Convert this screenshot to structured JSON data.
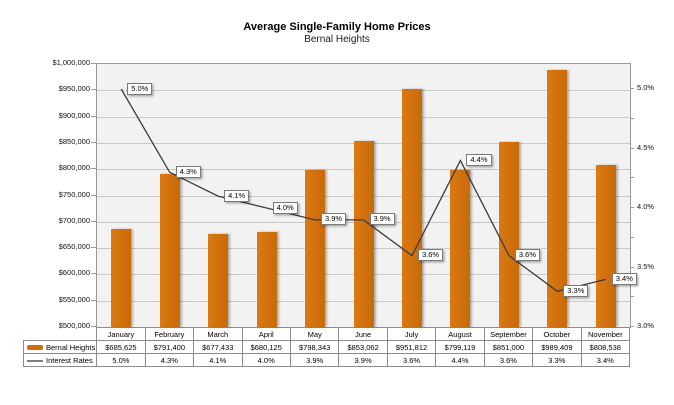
{
  "chart_data": {
    "type": "bar",
    "subtype": "combo-bar-line",
    "title": "Average Single-Family Home Prices",
    "subtitle": "Bernal Heights",
    "categories": [
      "January",
      "February",
      "March",
      "April",
      "May",
      "June",
      "July",
      "August",
      "September",
      "October",
      "November"
    ],
    "series": [
      {
        "name": "Bernal Heights",
        "type": "bar",
        "axis": "left",
        "color": "#d06e0e",
        "values": [
          685625,
          791400,
          677433,
          680125,
          798343,
          853062,
          951812,
          799119,
          851000,
          989409,
          808538
        ],
        "labels": [
          "$685,625",
          "$791,400",
          "$677,433",
          "$680,125",
          "$798,343",
          "$853,062",
          "$951,812",
          "$799,119",
          "$851,000",
          "$989,409",
          "$808,538"
        ]
      },
      {
        "name": "Interest Rates",
        "type": "line",
        "axis": "right",
        "color": "#3c3c3c",
        "values": [
          5.0,
          4.3,
          4.1,
          4.0,
          3.9,
          3.9,
          3.6,
          4.4,
          3.6,
          3.3,
          3.4
        ],
        "labels": [
          "5.0%",
          "4.3%",
          "4.1%",
          "4.0%",
          "3.9%",
          "3.9%",
          "3.6%",
          "4.4%",
          "3.6%",
          "3.3%",
          "3.4%"
        ]
      }
    ],
    "left_axis": {
      "min": 500000,
      "max": 1000000,
      "tick_labels": [
        "$1,000,000",
        "$950,000",
        "$900,000",
        "$850,000",
        "$800,000",
        "$750,000",
        "$700,000",
        "$650,000",
        "$600,000",
        "$550,000",
        "$500,000"
      ]
    },
    "right_axis": {
      "min": 3.0,
      "max": 5.21,
      "tick_labels": [
        "5.0%",
        "4.5%",
        "4.0%",
        "3.5%",
        "3.0%"
      ],
      "tick_values": [
        5.0,
        4.5,
        4.0,
        3.5,
        3.0
      ],
      "minor_tick_step": 0.25,
      "minor_tick_min": 3.0,
      "minor_tick_max": 5.0
    },
    "grid": true,
    "legend_position": "table-left",
    "data_labels_shown_for": "Interest Rates",
    "plot_bg": "#f2f2f2"
  }
}
